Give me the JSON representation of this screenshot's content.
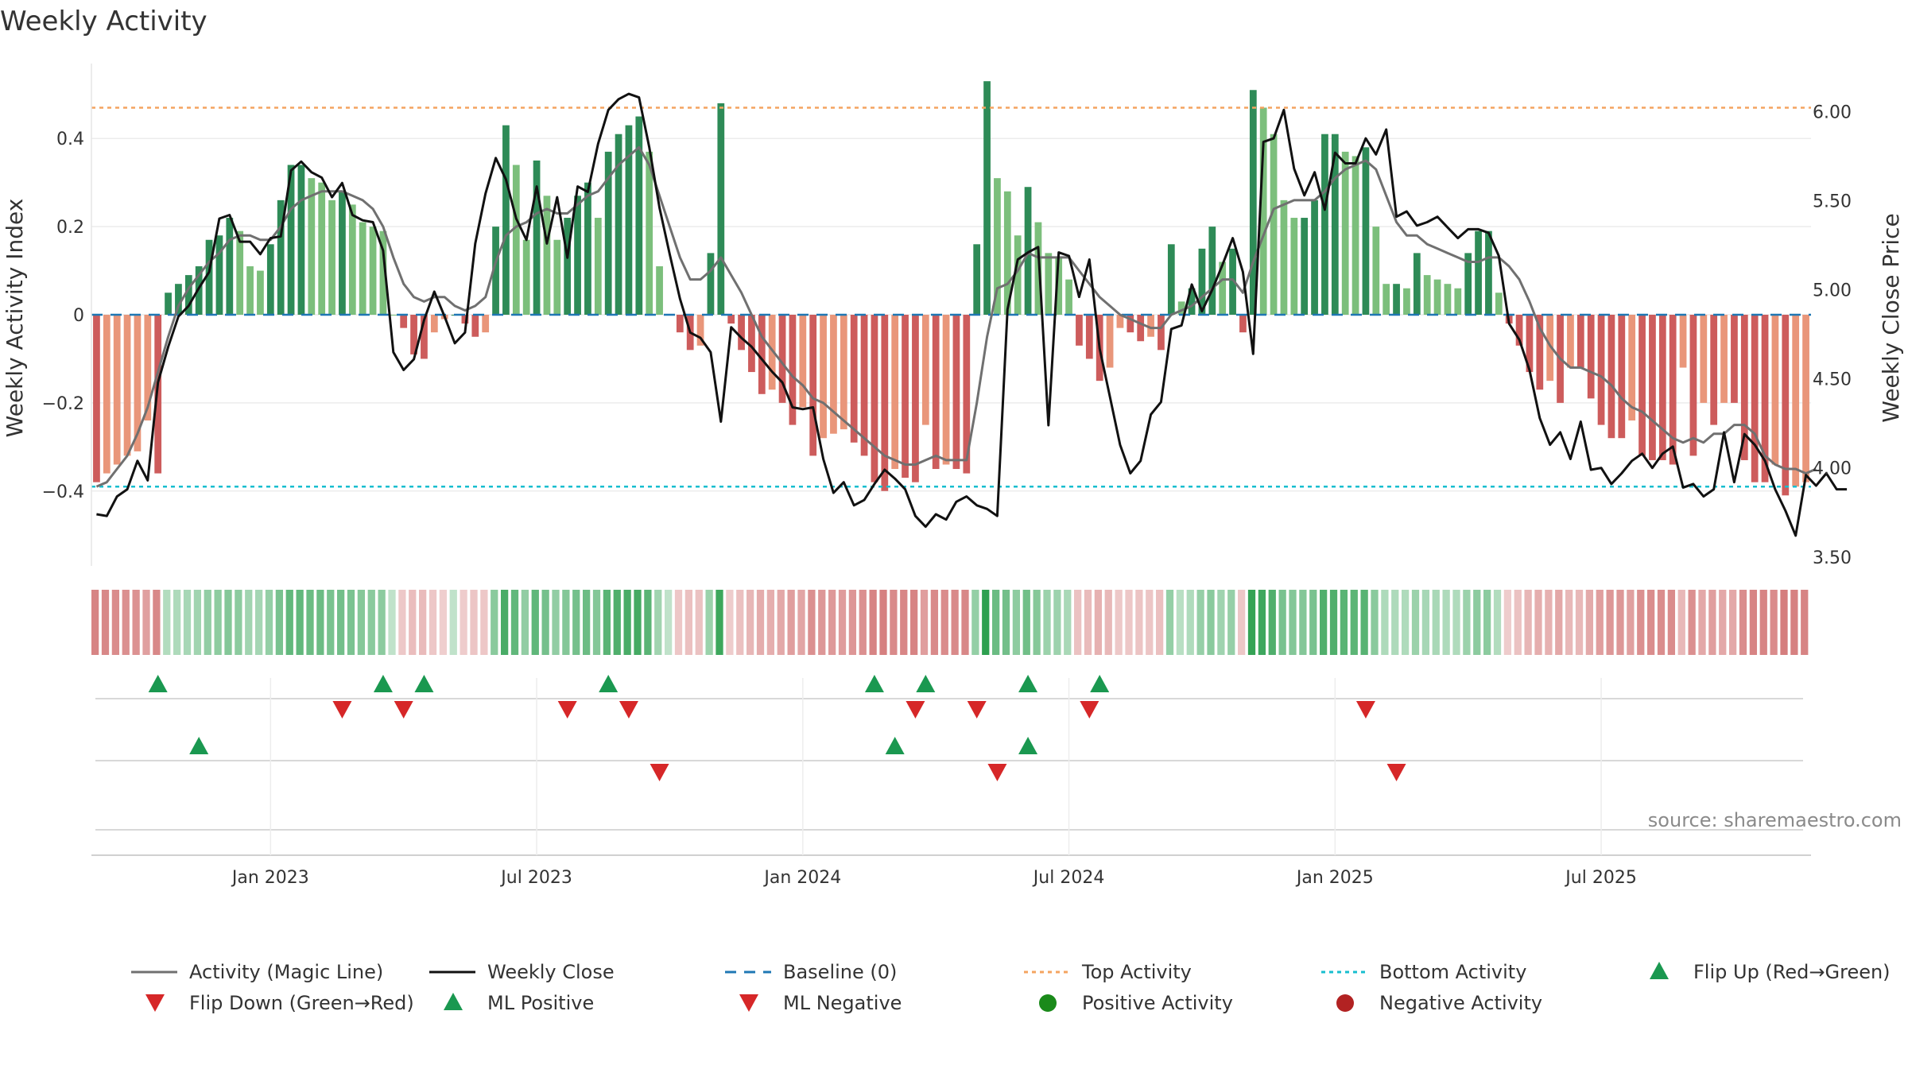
{
  "chart_data": {
    "type": "bar",
    "title": "Weekly Activity",
    "ylabel_left": "Weekly Activity Index",
    "ylabel_right": "Weekly Close Price",
    "source": "source: sharemaestro.com",
    "left_axis": {
      "ylim": [
        -0.57,
        0.57
      ],
      "ticks": [
        {
          "v": 0.4,
          "label": "0.4"
        },
        {
          "v": 0.2,
          "label": "0.2"
        },
        {
          "v": 0,
          "label": "0"
        },
        {
          "v": -0.2,
          "label": "−0.2"
        },
        {
          "v": -0.4,
          "label": "−0.4"
        }
      ]
    },
    "right_axis": {
      "ylim": [
        3.45,
        6.27
      ],
      "ticks": [
        {
          "v": 6.0,
          "label": "6.00"
        },
        {
          "v": 5.5,
          "label": "5.50"
        },
        {
          "v": 5.0,
          "label": "5.00"
        },
        {
          "v": 4.5,
          "label": "4.50"
        },
        {
          "v": 4.0,
          "label": "4.00"
        },
        {
          "v": 3.5,
          "label": "3.50"
        }
      ]
    },
    "top_activity": 0.47,
    "bottom_activity": -0.39,
    "baseline": 0,
    "x_ticks": [
      {
        "w": 17,
        "label": "Jan 2023"
      },
      {
        "w": 43,
        "label": "Jul 2023"
      },
      {
        "w": 69,
        "label": "Jan 2024"
      },
      {
        "w": 95,
        "label": "Jul 2024"
      },
      {
        "w": 121,
        "label": "Jan 2025"
      },
      {
        "w": 147,
        "label": "Jul 2025"
      }
    ],
    "activity": [
      -0.38,
      -0.36,
      -0.34,
      -0.32,
      -0.31,
      -0.24,
      -0.36,
      0.05,
      0.07,
      0.09,
      0.11,
      0.17,
      0.18,
      0.22,
      0.19,
      0.11,
      0.1,
      0.16,
      0.26,
      0.34,
      0.34,
      0.31,
      0.3,
      0.26,
      0.28,
      0.25,
      0.21,
      0.2,
      0.19,
      0.0,
      -0.03,
      -0.09,
      -0.1,
      -0.04,
      -0.01,
      0.0,
      -0.02,
      -0.05,
      -0.04,
      0.2,
      0.43,
      0.34,
      0.17,
      0.35,
      0.27,
      0.17,
      0.22,
      0.27,
      0.3,
      0.22,
      0.37,
      0.41,
      0.43,
      0.45,
      0.37,
      0.11,
      0.0,
      -0.04,
      -0.08,
      -0.07,
      0.14,
      0.48,
      -0.02,
      -0.08,
      -0.13,
      -0.18,
      -0.17,
      -0.2,
      -0.25,
      -0.21,
      -0.32,
      -0.28,
      -0.27,
      -0.26,
      -0.29,
      -0.32,
      -0.38,
      -0.4,
      -0.35,
      -0.37,
      -0.38,
      -0.25,
      -0.35,
      -0.34,
      -0.35,
      -0.36,
      0.16,
      0.53,
      0.31,
      0.28,
      0.18,
      0.29,
      0.21,
      0.14,
      0.13,
      0.08,
      -0.07,
      -0.1,
      -0.15,
      -0.12,
      -0.03,
      -0.04,
      -0.06,
      -0.05,
      -0.08,
      0.16,
      0.03,
      0.06,
      0.15,
      0.2,
      0.12,
      0.15,
      -0.04,
      0.51,
      0.47,
      0.41,
      0.26,
      0.22,
      0.22,
      0.26,
      0.41,
      0.41,
      0.37,
      0.36,
      0.38,
      0.2,
      0.07,
      0.07,
      0.06,
      0.14,
      0.09,
      0.08,
      0.07,
      0.06,
      0.14,
      0.19,
      0.19,
      0.05,
      -0.02,
      -0.07,
      -0.13,
      -0.17,
      -0.15,
      -0.2,
      -0.12,
      -0.12,
      -0.19,
      -0.25,
      -0.28,
      -0.28,
      -0.24,
      -0.32,
      -0.33,
      -0.33,
      -0.34,
      -0.12,
      -0.32,
      -0.2,
      -0.25,
      -0.2,
      -0.2,
      -0.33,
      -0.38,
      -0.38,
      -0.34,
      -0.41,
      -0.39,
      -0.38
    ],
    "weekly_close": [
      3.74,
      3.73,
      3.84,
      3.88,
      4.04,
      3.93,
      4.48,
      4.68,
      4.85,
      4.91,
      5.01,
      5.1,
      5.4,
      5.42,
      5.27,
      5.27,
      5.2,
      5.29,
      5.3,
      5.67,
      5.72,
      5.66,
      5.63,
      5.52,
      5.6,
      5.42,
      5.39,
      5.38,
      5.22,
      4.65,
      4.55,
      4.61,
      4.83,
      4.99,
      4.85,
      4.7,
      4.76,
      5.26,
      5.54,
      5.74,
      5.62,
      5.4,
      5.28,
      5.58,
      5.26,
      5.52,
      5.18,
      5.58,
      5.55,
      5.82,
      6.01,
      6.07,
      6.1,
      6.08,
      5.8,
      5.46,
      5.2,
      4.95,
      4.76,
      4.73,
      4.65,
      4.26,
      4.79,
      4.73,
      4.68,
      4.61,
      4.54,
      4.48,
      4.34,
      4.33,
      4.34,
      4.05,
      3.86,
      3.92,
      3.79,
      3.82,
      3.91,
      3.99,
      3.94,
      3.88,
      3.73,
      3.67,
      3.74,
      3.71,
      3.81,
      3.84,
      3.79,
      3.77,
      3.73,
      4.89,
      5.17,
      5.21,
      5.24,
      4.24,
      5.21,
      5.19,
      4.96,
      5.17,
      4.67,
      4.4,
      4.13,
      3.97,
      4.04,
      4.3,
      4.37,
      4.78,
      4.8,
      5.03,
      4.88,
      5.0,
      5.14,
      5.29,
      5.1,
      4.64,
      5.83,
      5.85,
      6.01,
      5.68,
      5.53,
      5.66,
      5.45,
      5.77,
      5.71,
      5.71,
      5.85,
      5.76,
      5.9,
      5.41,
      5.44,
      5.36,
      5.38,
      5.41,
      5.35,
      5.29,
      5.34,
      5.34,
      5.32,
      5.19,
      4.81,
      4.72,
      4.55,
      4.28,
      4.13,
      4.2,
      4.05,
      4.26,
      3.99,
      4.0,
      3.91,
      3.97,
      4.04,
      4.08,
      4.0,
      4.08,
      4.12,
      3.89,
      3.91,
      3.84,
      3.88,
      4.2,
      3.92,
      4.19,
      4.13,
      4.04,
      3.88,
      3.76,
      3.62,
      3.96,
      3.9,
      3.97,
      3.88,
      3.88
    ],
    "magic_line": [
      -0.39,
      -0.38,
      -0.35,
      -0.32,
      -0.27,
      -0.21,
      -0.13,
      -0.05,
      0.02,
      0.06,
      0.09,
      0.12,
      0.14,
      0.17,
      0.18,
      0.18,
      0.17,
      0.17,
      0.2,
      0.24,
      0.26,
      0.27,
      0.28,
      0.28,
      0.28,
      0.27,
      0.26,
      0.24,
      0.2,
      0.13,
      0.07,
      0.04,
      0.03,
      0.04,
      0.04,
      0.02,
      0.01,
      0.02,
      0.04,
      0.12,
      0.18,
      0.2,
      0.21,
      0.23,
      0.24,
      0.23,
      0.23,
      0.25,
      0.27,
      0.28,
      0.31,
      0.34,
      0.36,
      0.38,
      0.34,
      0.27,
      0.2,
      0.13,
      0.08,
      0.08,
      0.1,
      0.13,
      0.09,
      0.05,
      0.0,
      -0.05,
      -0.08,
      -0.11,
      -0.14,
      -0.16,
      -0.19,
      -0.2,
      -0.22,
      -0.24,
      -0.26,
      -0.28,
      -0.3,
      -0.32,
      -0.33,
      -0.34,
      -0.34,
      -0.33,
      -0.32,
      -0.33,
      -0.33,
      -0.33,
      -0.2,
      -0.05,
      0.06,
      0.07,
      0.1,
      0.14,
      0.13,
      0.13,
      0.13,
      0.13,
      0.1,
      0.07,
      0.04,
      0.02,
      0.0,
      -0.01,
      -0.02,
      -0.03,
      -0.03,
      0.0,
      0.01,
      0.02,
      0.04,
      0.06,
      0.08,
      0.08,
      0.05,
      0.12,
      0.18,
      0.24,
      0.25,
      0.26,
      0.26,
      0.26,
      0.28,
      0.31,
      0.33,
      0.34,
      0.35,
      0.33,
      0.27,
      0.21,
      0.18,
      0.18,
      0.16,
      0.15,
      0.14,
      0.13,
      0.12,
      0.12,
      0.13,
      0.13,
      0.11,
      0.08,
      0.03,
      -0.03,
      -0.07,
      -0.1,
      -0.12,
      -0.12,
      -0.13,
      -0.14,
      -0.16,
      -0.19,
      -0.21,
      -0.22,
      -0.24,
      -0.26,
      -0.28,
      -0.29,
      -0.28,
      -0.29,
      -0.27,
      -0.27,
      -0.25,
      -0.25,
      -0.27,
      -0.32,
      -0.34,
      -0.35,
      -0.35,
      -0.36,
      -0.35
    ],
    "flip_up": [
      6,
      28,
      32,
      50,
      76,
      81,
      91,
      98
    ],
    "flip_down": [
      24,
      30,
      46,
      52,
      80,
      86,
      97,
      124
    ],
    "ml_positive": [
      10,
      78,
      91
    ],
    "ml_negative": [
      55,
      88,
      127
    ],
    "colors": {
      "strong_green": "#2e8b57",
      "light_green": "#7cbf7c",
      "strong_red": "#cd5c5c",
      "light_red": "#e9967a",
      "magic_line": "#707070",
      "close": "#111111",
      "baseline": "#1f77b4",
      "top": "#f4a460",
      "bottom": "#17becf",
      "flip_up": "#1a9850",
      "flip_down": "#d62728",
      "positive_dot": "#1a8a1a",
      "negative_dot": "#b22222"
    },
    "legend": [
      {
        "label": "Activity (Magic Line)",
        "kind": "line",
        "color": "#707070"
      },
      {
        "label": "Weekly Close",
        "kind": "line",
        "color": "#111111"
      },
      {
        "label": "Baseline (0)",
        "kind": "dashed",
        "color": "#1f77b4"
      },
      {
        "label": "Top Activity",
        "kind": "dotted",
        "color": "#f4a460"
      },
      {
        "label": "Bottom Activity",
        "kind": "dotted",
        "color": "#17becf"
      },
      {
        "label": "Flip Up (Red→Green)",
        "kind": "tri-up",
        "color": "#1a9850"
      },
      {
        "label": "Flip Down (Green→Red)",
        "kind": "tri-down",
        "color": "#d62728"
      },
      {
        "label": "ML Positive",
        "kind": "tri-up",
        "color": "#1a9850"
      },
      {
        "label": "ML Negative",
        "kind": "tri-down",
        "color": "#d62728"
      },
      {
        "label": "Positive Activity",
        "kind": "dot",
        "color": "#1a8a1a"
      },
      {
        "label": "Negative Activity",
        "kind": "dot",
        "color": "#b22222"
      }
    ]
  }
}
